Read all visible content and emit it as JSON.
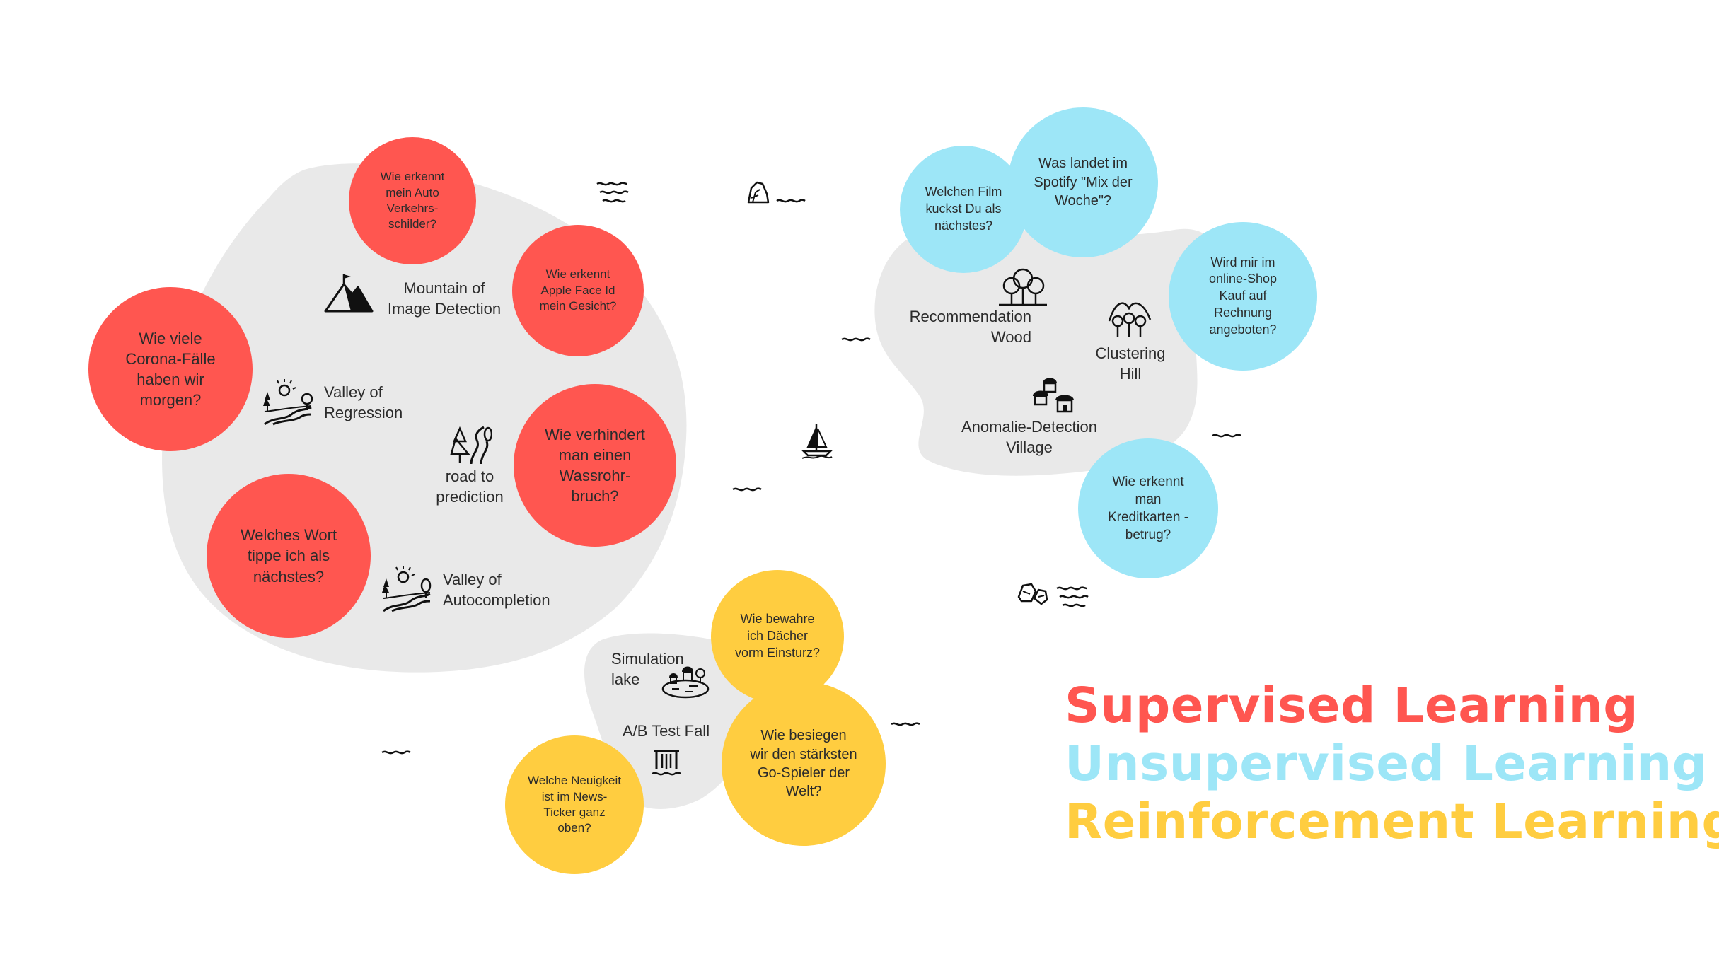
{
  "colors": {
    "supervised": "#ff5650",
    "unsupervised": "#9de6f7",
    "reinforcement": "#ffcd40",
    "island": "#e9e9e9",
    "ink": "#2b2b2b"
  },
  "supervised": {
    "bubbles": {
      "traffic_signs": "Wie erkennt mein Auto Verkehrs-schilder?",
      "face_id": "Wie erkennt Apple Face Id mein Gesicht?",
      "corona": "Wie viele Corona-Fälle haben wir morgen?",
      "water_pipe": "Wie verhindert man einen Wassrohr-bruch?",
      "next_word": "Welches Wort tippe ich als nächstes?"
    },
    "places": {
      "mountain": "Mountain of Image Detection",
      "valley_regression": "Valley of Regression",
      "road": "road to prediction",
      "valley_autocompletion": "Valley of Autocompletion"
    }
  },
  "unsupervised": {
    "bubbles": {
      "film": "Welchen Film kuckst Du als nächstes?",
      "spotify": "Was landet im Spotify \"Mix der Woche\"?",
      "invoice": "Wird mir im online-Shop Kauf auf Rechnung angeboten?",
      "credit_card": "Wie erkennt man Kreditkarten -betrug?"
    },
    "places": {
      "recommendation": "Recommendation Wood",
      "clustering": "Clustering Hill",
      "anomaly": "Anomalie-Detection Village"
    }
  },
  "reinforcement": {
    "bubbles": {
      "roofs": "Wie bewahre ich Dächer vorm Einsturz?",
      "go": "Wie besiegen wir den stärksten Go-Spieler der Welt?",
      "news": "Welche Neuigkeit ist im News-Ticker ganz oben?"
    },
    "places": {
      "simulation_lake": "Simulation lake",
      "ab_test": "A/B Test Fall"
    }
  },
  "legend": {
    "supervised": "Supervised Learning",
    "unsupervised": "Unsupervised Learning",
    "reinforcement": "Reinforcement Learning"
  },
  "icons": [
    "mountain-icon",
    "valley-icon",
    "forest-road-icon",
    "trees-icon",
    "hills-trees-icon",
    "huts-icon",
    "lake-village-icon",
    "waterfall-icon",
    "sailboat-icon",
    "rock-icon",
    "stones-icon",
    "wave-icon"
  ]
}
